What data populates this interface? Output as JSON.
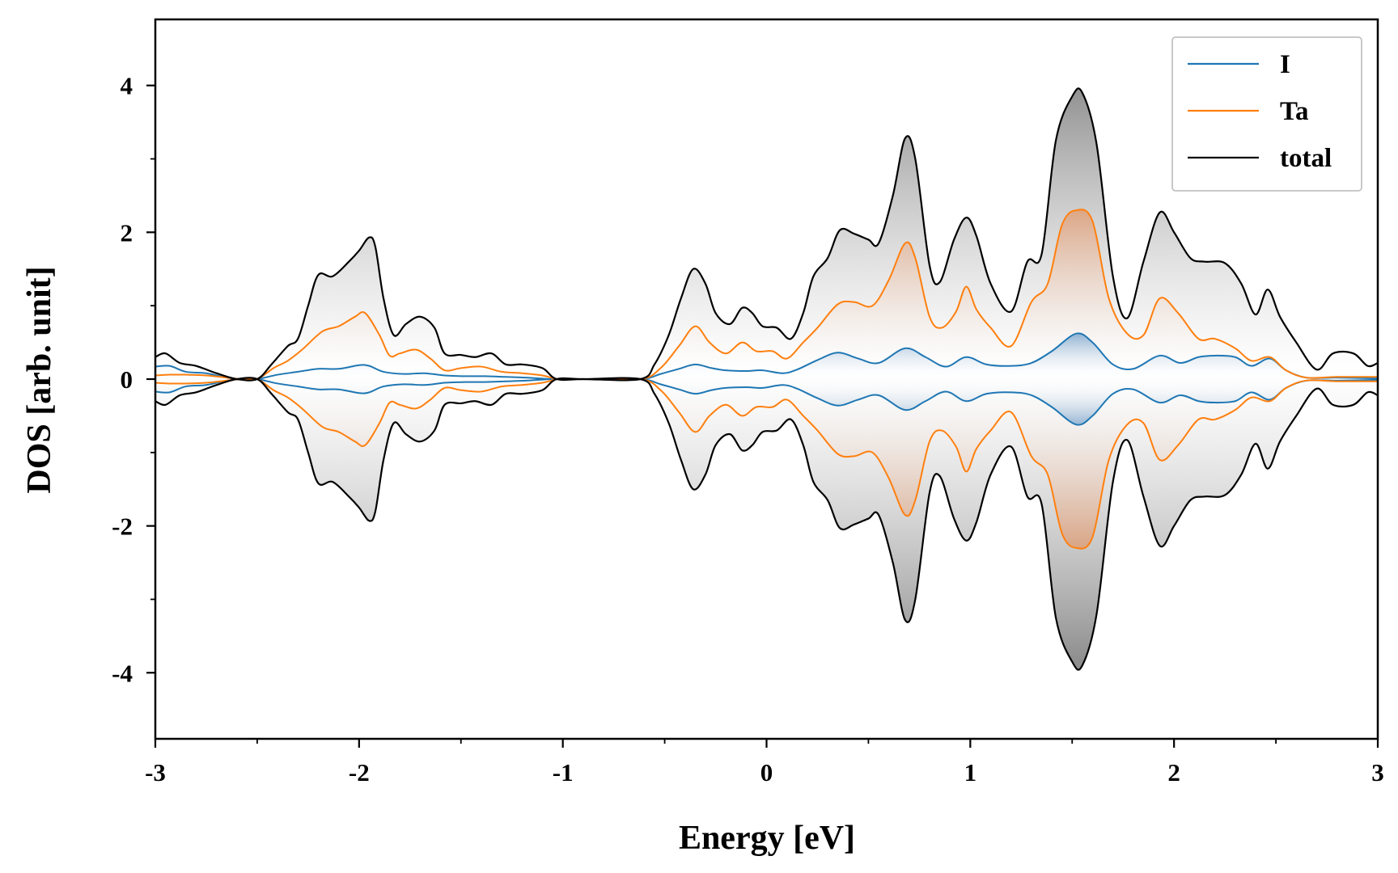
{
  "chart_data": {
    "type": "area",
    "title": "",
    "xlabel": "Energy [eV]",
    "ylabel": "DOS [arb. unit]",
    "xlim": [
      -3,
      3
    ],
    "ylim": [
      -4.9,
      4.9
    ],
    "x_ticks": [
      -3,
      -2,
      -1,
      0,
      1,
      2,
      3
    ],
    "x_tick_labels": [
      "-3",
      "-2",
      "-1",
      "0",
      "1",
      "2",
      "3"
    ],
    "y_ticks": [
      -4,
      -2,
      0,
      2,
      4
    ],
    "y_tick_labels": [
      "-4",
      "-2",
      "0",
      "2",
      "4"
    ],
    "grid": false,
    "legend_position": "top-right",
    "mirrored": true,
    "series": [
      {
        "name": "I",
        "color": "#1f77b4",
        "points": [
          [
            -3.0,
            0.17
          ],
          [
            -2.93,
            0.18
          ],
          [
            -2.85,
            0.1
          ],
          [
            -2.75,
            0.08
          ],
          [
            -2.65,
            0.02
          ],
          [
            -2.58,
            0.0
          ],
          [
            -2.5,
            0.0
          ],
          [
            -2.4,
            0.06
          ],
          [
            -2.3,
            0.1
          ],
          [
            -2.2,
            0.14
          ],
          [
            -2.1,
            0.14
          ],
          [
            -2.0,
            0.19
          ],
          [
            -1.95,
            0.18
          ],
          [
            -1.88,
            0.1
          ],
          [
            -1.78,
            0.07
          ],
          [
            -1.68,
            0.08
          ],
          [
            -1.58,
            0.05
          ],
          [
            -1.48,
            0.04
          ],
          [
            -1.38,
            0.04
          ],
          [
            -1.28,
            0.03
          ],
          [
            -1.18,
            0.02
          ],
          [
            -1.05,
            0.0
          ],
          [
            -0.9,
            0.0
          ],
          [
            -0.62,
            0.0
          ],
          [
            -0.52,
            0.07
          ],
          [
            -0.43,
            0.14
          ],
          [
            -0.35,
            0.2
          ],
          [
            -0.27,
            0.15
          ],
          [
            -0.2,
            0.12
          ],
          [
            -0.1,
            0.11
          ],
          [
            -0.02,
            0.12
          ],
          [
            0.08,
            0.08
          ],
          [
            0.15,
            0.13
          ],
          [
            0.25,
            0.26
          ],
          [
            0.35,
            0.36
          ],
          [
            0.45,
            0.28
          ],
          [
            0.55,
            0.22
          ],
          [
            0.68,
            0.42
          ],
          [
            0.78,
            0.3
          ],
          [
            0.88,
            0.17
          ],
          [
            0.98,
            0.3
          ],
          [
            1.08,
            0.2
          ],
          [
            1.2,
            0.18
          ],
          [
            1.3,
            0.22
          ],
          [
            1.4,
            0.38
          ],
          [
            1.52,
            0.62
          ],
          [
            1.6,
            0.5
          ],
          [
            1.7,
            0.2
          ],
          [
            1.8,
            0.14
          ],
          [
            1.93,
            0.32
          ],
          [
            2.03,
            0.22
          ],
          [
            2.12,
            0.3
          ],
          [
            2.2,
            0.32
          ],
          [
            2.3,
            0.3
          ],
          [
            2.38,
            0.18
          ],
          [
            2.47,
            0.28
          ],
          [
            2.55,
            0.12
          ],
          [
            2.65,
            0.02
          ],
          [
            2.8,
            0.02
          ],
          [
            3.0,
            0.01
          ]
        ]
      },
      {
        "name": "Ta",
        "color": "#ff7f0e",
        "points": [
          [
            -3.0,
            0.05
          ],
          [
            -2.93,
            0.06
          ],
          [
            -2.85,
            0.06
          ],
          [
            -2.75,
            0.05
          ],
          [
            -2.65,
            0.02
          ],
          [
            -2.58,
            0.0
          ],
          [
            -2.5,
            0.0
          ],
          [
            -2.42,
            0.15
          ],
          [
            -2.35,
            0.25
          ],
          [
            -2.28,
            0.4
          ],
          [
            -2.18,
            0.65
          ],
          [
            -2.1,
            0.72
          ],
          [
            -2.02,
            0.85
          ],
          [
            -1.97,
            0.9
          ],
          [
            -1.9,
            0.6
          ],
          [
            -1.85,
            0.32
          ],
          [
            -1.8,
            0.35
          ],
          [
            -1.72,
            0.4
          ],
          [
            -1.65,
            0.28
          ],
          [
            -1.58,
            0.12
          ],
          [
            -1.5,
            0.15
          ],
          [
            -1.4,
            0.17
          ],
          [
            -1.3,
            0.1
          ],
          [
            -1.2,
            0.08
          ],
          [
            -1.1,
            0.05
          ],
          [
            -1.02,
            0.0
          ],
          [
            -0.9,
            0.0
          ],
          [
            -0.62,
            0.0
          ],
          [
            -0.52,
            0.15
          ],
          [
            -0.43,
            0.45
          ],
          [
            -0.35,
            0.72
          ],
          [
            -0.28,
            0.5
          ],
          [
            -0.2,
            0.35
          ],
          [
            -0.12,
            0.5
          ],
          [
            -0.05,
            0.38
          ],
          [
            0.03,
            0.38
          ],
          [
            0.1,
            0.28
          ],
          [
            0.18,
            0.5
          ],
          [
            0.25,
            0.7
          ],
          [
            0.35,
            1.02
          ],
          [
            0.43,
            1.05
          ],
          [
            0.52,
            1.0
          ],
          [
            0.6,
            1.35
          ],
          [
            0.68,
            1.85
          ],
          [
            0.73,
            1.65
          ],
          [
            0.8,
            0.85
          ],
          [
            0.86,
            0.7
          ],
          [
            0.93,
            0.92
          ],
          [
            0.98,
            1.26
          ],
          [
            1.03,
            0.95
          ],
          [
            1.1,
            0.7
          ],
          [
            1.2,
            0.45
          ],
          [
            1.3,
            1.05
          ],
          [
            1.38,
            1.3
          ],
          [
            1.45,
            2.1
          ],
          [
            1.52,
            2.3
          ],
          [
            1.6,
            2.15
          ],
          [
            1.68,
            1.1
          ],
          [
            1.77,
            0.62
          ],
          [
            1.85,
            0.6
          ],
          [
            1.93,
            1.1
          ],
          [
            2.02,
            0.9
          ],
          [
            2.12,
            0.55
          ],
          [
            2.2,
            0.55
          ],
          [
            2.3,
            0.42
          ],
          [
            2.38,
            0.25
          ],
          [
            2.47,
            0.3
          ],
          [
            2.55,
            0.12
          ],
          [
            2.65,
            0.02
          ],
          [
            2.8,
            0.03
          ],
          [
            3.0,
            0.03
          ]
        ]
      },
      {
        "name": "total",
        "color": "#000000",
        "points": [
          [
            -3.0,
            0.3
          ],
          [
            -2.95,
            0.35
          ],
          [
            -2.88,
            0.22
          ],
          [
            -2.8,
            0.18
          ],
          [
            -2.7,
            0.08
          ],
          [
            -2.6,
            0.0
          ],
          [
            -2.5,
            0.0
          ],
          [
            -2.43,
            0.2
          ],
          [
            -2.35,
            0.45
          ],
          [
            -2.3,
            0.55
          ],
          [
            -2.25,
            1.0
          ],
          [
            -2.2,
            1.42
          ],
          [
            -2.13,
            1.4
          ],
          [
            -2.05,
            1.6
          ],
          [
            -2.0,
            1.75
          ],
          [
            -1.95,
            1.93
          ],
          [
            -1.92,
            1.8
          ],
          [
            -1.88,
            1.1
          ],
          [
            -1.83,
            0.6
          ],
          [
            -1.77,
            0.75
          ],
          [
            -1.7,
            0.85
          ],
          [
            -1.63,
            0.7
          ],
          [
            -1.58,
            0.35
          ],
          [
            -1.5,
            0.33
          ],
          [
            -1.43,
            0.3
          ],
          [
            -1.35,
            0.35
          ],
          [
            -1.28,
            0.2
          ],
          [
            -1.2,
            0.2
          ],
          [
            -1.1,
            0.15
          ],
          [
            -1.03,
            0.0
          ],
          [
            -0.9,
            0.0
          ],
          [
            -0.62,
            0.0
          ],
          [
            -0.55,
            0.2
          ],
          [
            -0.48,
            0.6
          ],
          [
            -0.42,
            1.1
          ],
          [
            -0.36,
            1.5
          ],
          [
            -0.3,
            1.3
          ],
          [
            -0.25,
            0.9
          ],
          [
            -0.18,
            0.75
          ],
          [
            -0.12,
            0.97
          ],
          [
            -0.07,
            0.9
          ],
          [
            -0.02,
            0.72
          ],
          [
            0.05,
            0.7
          ],
          [
            0.12,
            0.55
          ],
          [
            0.18,
            0.9
          ],
          [
            0.23,
            1.4
          ],
          [
            0.3,
            1.65
          ],
          [
            0.36,
            2.03
          ],
          [
            0.43,
            1.98
          ],
          [
            0.5,
            1.9
          ],
          [
            0.55,
            1.85
          ],
          [
            0.62,
            2.5
          ],
          [
            0.68,
            3.28
          ],
          [
            0.73,
            3.0
          ],
          [
            0.8,
            1.55
          ],
          [
            0.85,
            1.32
          ],
          [
            0.92,
            1.9
          ],
          [
            0.98,
            2.2
          ],
          [
            1.03,
            1.95
          ],
          [
            1.1,
            1.3
          ],
          [
            1.2,
            0.92
          ],
          [
            1.28,
            1.6
          ],
          [
            1.35,
            1.7
          ],
          [
            1.42,
            3.25
          ],
          [
            1.5,
            3.85
          ],
          [
            1.55,
            3.9
          ],
          [
            1.62,
            3.2
          ],
          [
            1.7,
            1.4
          ],
          [
            1.77,
            0.83
          ],
          [
            1.85,
            1.6
          ],
          [
            1.93,
            2.27
          ],
          [
            2.0,
            2.0
          ],
          [
            2.08,
            1.65
          ],
          [
            2.15,
            1.6
          ],
          [
            2.25,
            1.58
          ],
          [
            2.33,
            1.3
          ],
          [
            2.4,
            0.88
          ],
          [
            2.46,
            1.22
          ],
          [
            2.52,
            0.85
          ],
          [
            2.6,
            0.5
          ],
          [
            2.7,
            0.13
          ],
          [
            2.78,
            0.35
          ],
          [
            2.88,
            0.35
          ],
          [
            2.95,
            0.18
          ],
          [
            3.0,
            0.22
          ]
        ]
      }
    ]
  }
}
